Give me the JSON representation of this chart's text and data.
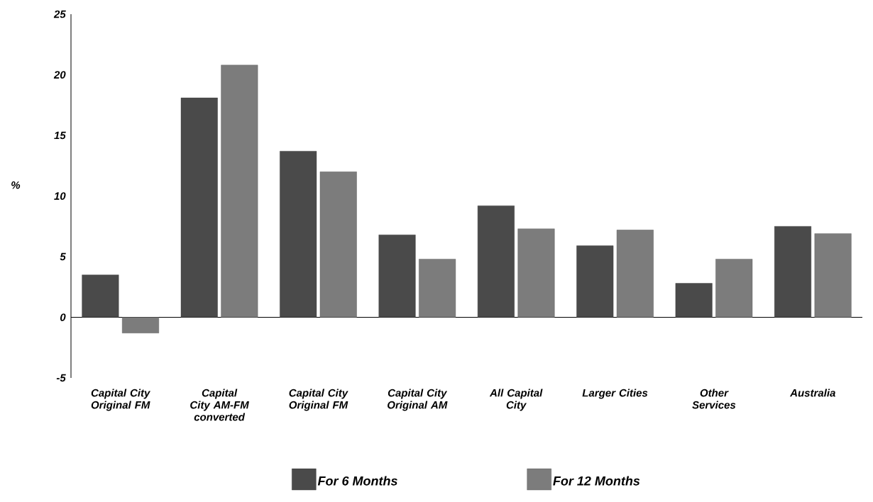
{
  "chart_data": {
    "type": "bar",
    "ylabel": "%",
    "categories": [
      "Capital City Original FM",
      "Capital City AM-FM converted",
      "Capital City Original FM",
      "Capital City Original AM",
      "All Capital City",
      "Larger Cities",
      "Other Services",
      "Australia"
    ],
    "series": [
      {
        "name": "For 6 Months",
        "color": "#4a4a4a",
        "values": [
          3.5,
          18.1,
          13.7,
          6.8,
          9.2,
          5.9,
          2.8,
          7.5
        ]
      },
      {
        "name": "For 12 Months",
        "color": "#7c7c7c",
        "values": [
          -1.3,
          20.8,
          12.0,
          4.8,
          7.3,
          7.2,
          4.8,
          6.9
        ]
      }
    ],
    "ylim": [
      -5,
      25
    ],
    "yticks": [
      -5,
      0,
      5,
      10,
      15,
      20,
      25
    ],
    "legend": "bottom"
  }
}
